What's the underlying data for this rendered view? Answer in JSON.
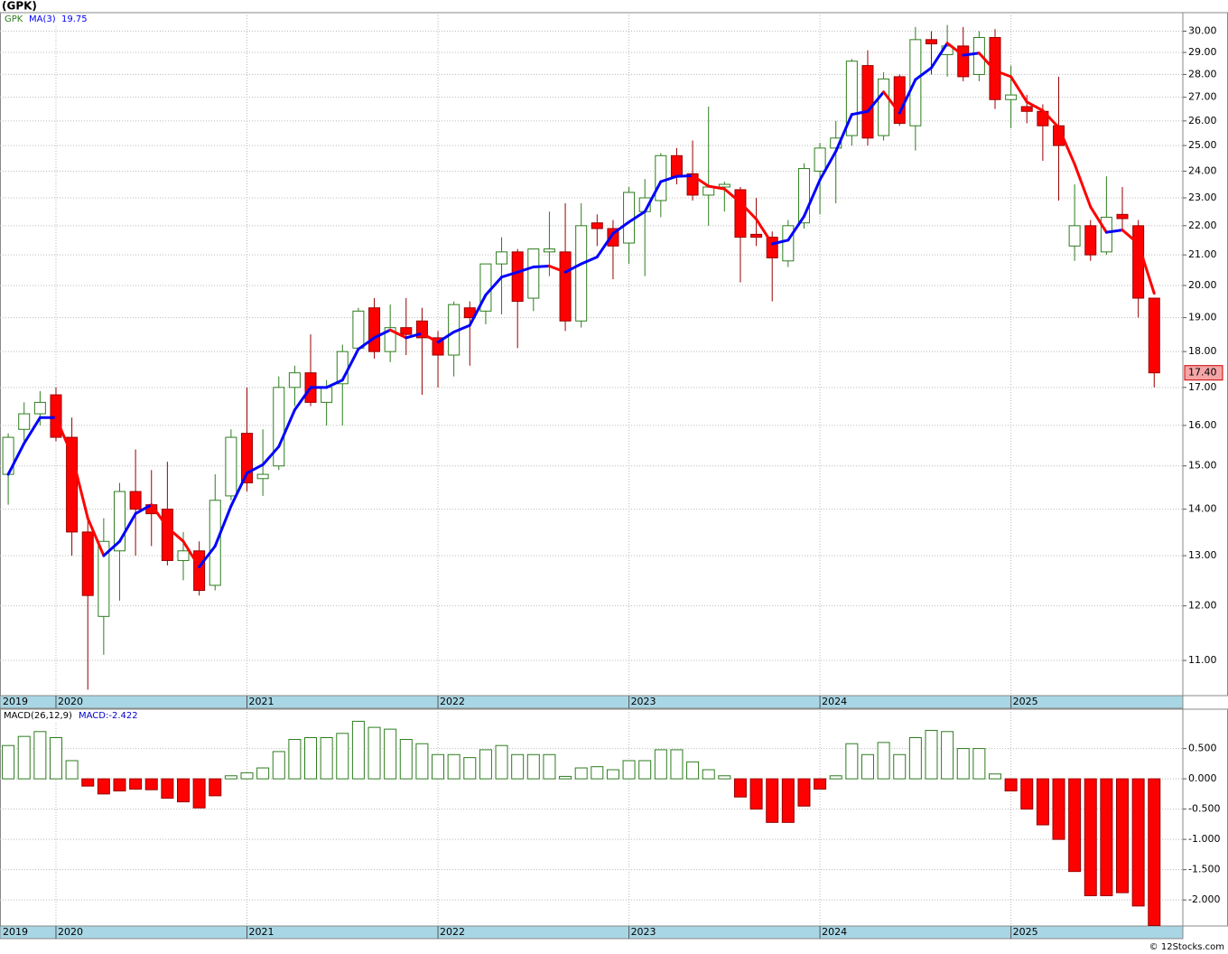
{
  "title": "(GPK)",
  "footer": "© 12Stocks.com",
  "chart_data": [
    {
      "type": "candlestick",
      "symbol": "GPK",
      "ma_name": "MA(3)",
      "ma_value": 19.75,
      "log_scale": true,
      "grid": true,
      "up_color": "#2e7d1f",
      "down_color": "#ff0000",
      "ma_up_color": "#0000ff",
      "ma_down_color": "#ff0000",
      "x": [
        2019.75,
        2019.8333,
        2019.9167,
        2020,
        2020.0833,
        2020.1667,
        2020.25,
        2020.3333,
        2020.4167,
        2020.5,
        2020.5833,
        2020.6667,
        2020.75,
        2020.8333,
        2020.9167,
        2021,
        2021.0833,
        2021.1667,
        2021.25,
        2021.3333,
        2021.4167,
        2021.5,
        2021.5833,
        2021.6667,
        2021.75,
        2021.8333,
        2021.9167,
        2022,
        2022.0833,
        2022.1667,
        2022.25,
        2022.3333,
        2022.4167,
        2022.5,
        2022.5833,
        2022.6667,
        2022.75,
        2022.8333,
        2022.9167,
        2023,
        2023.0833,
        2023.1667,
        2023.25,
        2023.3333,
        2023.4167,
        2023.5,
        2023.5833,
        2023.6667,
        2023.75,
        2023.8333,
        2023.9167,
        2024,
        2024.0833,
        2024.1667,
        2024.25,
        2024.3333,
        2024.4167,
        2024.5,
        2024.5833,
        2024.6667,
        2024.75,
        2024.8333,
        2024.9167,
        2025,
        2025.0833,
        2025.1667,
        2025.25,
        2025.3333,
        2025.4167,
        2025.5,
        2025.5833,
        2025.6667,
        2025.75
      ],
      "open": [
        14.8,
        15.9,
        16.3,
        16.8,
        15.7,
        13.5,
        11.8,
        13.1,
        14.4,
        14.1,
        14.0,
        12.9,
        13.1,
        12.4,
        14.3,
        15.8,
        14.7,
        15.0,
        17.0,
        17.4,
        16.6,
        17.1,
        18.1,
        19.3,
        18.0,
        18.7,
        18.9,
        18.4,
        17.9,
        19.3,
        19.2,
        20.7,
        21.1,
        19.6,
        21.1,
        21.1,
        18.9,
        22.1,
        21.9,
        21.4,
        22.5,
        22.9,
        24.6,
        23.9,
        23.1,
        23.4,
        23.3,
        21.7,
        21.6,
        20.8,
        22.1,
        24.0,
        24.9,
        25.4,
        28.4,
        25.4,
        27.9,
        25.8,
        29.6,
        28.9,
        29.3,
        28.0,
        29.7,
        26.9,
        26.6,
        26.4,
        25.8,
        21.3,
        22.0,
        21.1,
        22.4,
        22.0,
        19.6
      ],
      "high": [
        15.8,
        16.6,
        16.9,
        17.0,
        16.2,
        13.8,
        13.8,
        14.6,
        15.4,
        14.9,
        15.1,
        13.5,
        13.3,
        14.8,
        15.9,
        17.0,
        15.9,
        17.3,
        17.6,
        18.5,
        17.2,
        18.2,
        19.3,
        19.6,
        19.4,
        19.6,
        19.3,
        18.6,
        19.5,
        19.5,
        20.7,
        21.6,
        21.2,
        21.2,
        22.5,
        22.8,
        22.8,
        22.4,
        22.2,
        23.4,
        23.7,
        24.7,
        24.9,
        25.2,
        26.6,
        23.6,
        23.4,
        23.0,
        21.8,
        22.2,
        24.3,
        25.1,
        26.0,
        28.7,
        29.1,
        28.1,
        28.0,
        30.2,
        30.0,
        30.3,
        30.2,
        30.0,
        30.1,
        28.4,
        27.1,
        26.7,
        27.9,
        23.5,
        22.2,
        23.8,
        23.4,
        22.2,
        19.6
      ],
      "low": [
        14.1,
        15.5,
        16.0,
        15.6,
        13.0,
        10.5,
        11.1,
        12.1,
        13.0,
        13.2,
        12.8,
        12.5,
        12.2,
        12.3,
        14.2,
        14.4,
        14.3,
        14.9,
        16.5,
        16.5,
        16.0,
        16.0,
        18.0,
        17.8,
        17.7,
        17.9,
        16.8,
        17.0,
        17.3,
        17.6,
        18.8,
        19.1,
        18.1,
        19.2,
        20.3,
        18.6,
        18.7,
        21.3,
        20.2,
        20.7,
        20.3,
        22.3,
        23.5,
        22.9,
        22.0,
        22.5,
        20.1,
        21.3,
        19.5,
        20.6,
        21.9,
        22.4,
        22.8,
        25.0,
        25.0,
        25.2,
        25.8,
        24.8,
        28.0,
        27.9,
        27.7,
        27.7,
        26.5,
        25.7,
        25.9,
        24.4,
        22.9,
        20.8,
        20.8,
        21.0,
        21.9,
        19.0,
        17.0
      ],
      "close": [
        15.7,
        16.3,
        16.6,
        15.7,
        13.5,
        12.2,
        13.3,
        14.4,
        14.0,
        13.9,
        12.9,
        13.1,
        12.3,
        14.2,
        15.7,
        14.6,
        14.8,
        17.0,
        17.4,
        16.6,
        17.0,
        18.0,
        19.2,
        18.0,
        18.7,
        18.5,
        18.4,
        17.9,
        19.4,
        19.0,
        20.7,
        21.1,
        19.5,
        21.2,
        21.2,
        18.9,
        22.0,
        21.9,
        21.3,
        23.2,
        23.0,
        24.6,
        23.8,
        23.1,
        23.4,
        23.5,
        21.6,
        21.6,
        20.9,
        22.0,
        24.1,
        24.9,
        25.3,
        28.6,
        25.3,
        27.8,
        25.9,
        29.6,
        29.4,
        29.3,
        27.9,
        29.7,
        26.9,
        27.1,
        26.4,
        25.8,
        25.0,
        22.0,
        21.0,
        22.3,
        22.25,
        19.6,
        17.4
      ],
      "ma": [
        14.8,
        15.55,
        16.2,
        16.2,
        15.27,
        13.8,
        13.0,
        13.3,
        13.9,
        14.1,
        13.6,
        13.3,
        12.77,
        13.2,
        14.07,
        14.83,
        15.03,
        15.47,
        16.4,
        17.0,
        17.0,
        17.2,
        18.07,
        18.4,
        18.63,
        18.4,
        18.53,
        18.27,
        18.57,
        18.77,
        19.7,
        20.27,
        20.43,
        20.6,
        20.63,
        20.43,
        20.7,
        20.93,
        21.73,
        22.13,
        22.5,
        23.6,
        23.8,
        23.83,
        23.43,
        23.33,
        22.83,
        22.23,
        21.37,
        21.5,
        22.33,
        23.67,
        24.77,
        26.27,
        26.4,
        27.23,
        26.33,
        27.77,
        28.3,
        29.43,
        28.87,
        28.97,
        28.17,
        27.9,
        26.8,
        26.43,
        25.73,
        24.27,
        22.67,
        21.77,
        21.85,
        21.38,
        19.75
      ],
      "last_label": {
        "value": 17.4,
        "label": "17.40"
      },
      "xlim": [
        2019.707,
        2025.9
      ],
      "x_start_label": "2019",
      "xticks": [
        2020,
        2021,
        2022,
        2023,
        2024,
        2025
      ],
      "ylim": [
        10.4,
        30.9
      ],
      "yticks": [
        {
          "value": 11,
          "label": "11.00"
        },
        {
          "value": 12,
          "label": "12.00"
        },
        {
          "value": 13,
          "label": "13.00"
        },
        {
          "value": 14,
          "label": "14.00"
        },
        {
          "value": 15,
          "label": "15.00"
        },
        {
          "value": 16,
          "label": "16.00"
        },
        {
          "value": 17,
          "label": "17.00"
        },
        {
          "value": 18,
          "label": "18.00"
        },
        {
          "value": 19,
          "label": "19.00"
        },
        {
          "value": 20,
          "label": "20.00"
        },
        {
          "value": 21,
          "label": "21.00"
        },
        {
          "value": 22,
          "label": "22.00"
        },
        {
          "value": 23,
          "label": "23.00"
        },
        {
          "value": 24,
          "label": "24.00"
        },
        {
          "value": 25,
          "label": "25.00"
        },
        {
          "value": 26,
          "label": "26.00"
        },
        {
          "value": 27,
          "label": "27.00"
        },
        {
          "value": 28,
          "label": "28.00"
        },
        {
          "value": 29,
          "label": "29.00"
        },
        {
          "value": 30,
          "label": "30.00"
        }
      ]
    },
    {
      "type": "bar",
      "name": "MACD(26,12,9)",
      "value_text": "MACD:-2.422",
      "grid": true,
      "up_color": "#2e7d1f",
      "down_color": "#ff0000",
      "values": [
        0.55,
        0.7,
        0.78,
        0.68,
        0.3,
        -0.12,
        -0.25,
        -0.2,
        -0.17,
        -0.18,
        -0.32,
        -0.38,
        -0.48,
        -0.28,
        0.05,
        0.1,
        0.18,
        0.45,
        0.65,
        0.68,
        0.68,
        0.75,
        0.95,
        0.85,
        0.82,
        0.65,
        0.58,
        0.4,
        0.4,
        0.35,
        0.48,
        0.55,
        0.4,
        0.4,
        0.4,
        0.04,
        0.18,
        0.2,
        0.15,
        0.3,
        0.3,
        0.48,
        0.48,
        0.28,
        0.15,
        0.05,
        -0.3,
        -0.5,
        -0.72,
        -0.72,
        -0.45,
        -0.17,
        0.05,
        0.58,
        0.4,
        0.6,
        0.4,
        0.68,
        0.8,
        0.78,
        0.5,
        0.5,
        0.08,
        -0.2,
        -0.5,
        -0.76,
        -1.0,
        -1.53,
        -1.93,
        -1.93,
        -1.88,
        -2.1,
        -2.422
      ],
      "ylim": [
        -2.43,
        1.15
      ],
      "yticks": [
        {
          "value": 0.5,
          "label": "0.500"
        },
        {
          "value": 0,
          "label": "0.000"
        },
        {
          "value": -0.5,
          "label": "-0.500"
        },
        {
          "value": -1,
          "label": "-1.000"
        },
        {
          "value": -1.5,
          "label": "-1.500"
        },
        {
          "value": -2,
          "label": "-2.000"
        }
      ]
    }
  ]
}
